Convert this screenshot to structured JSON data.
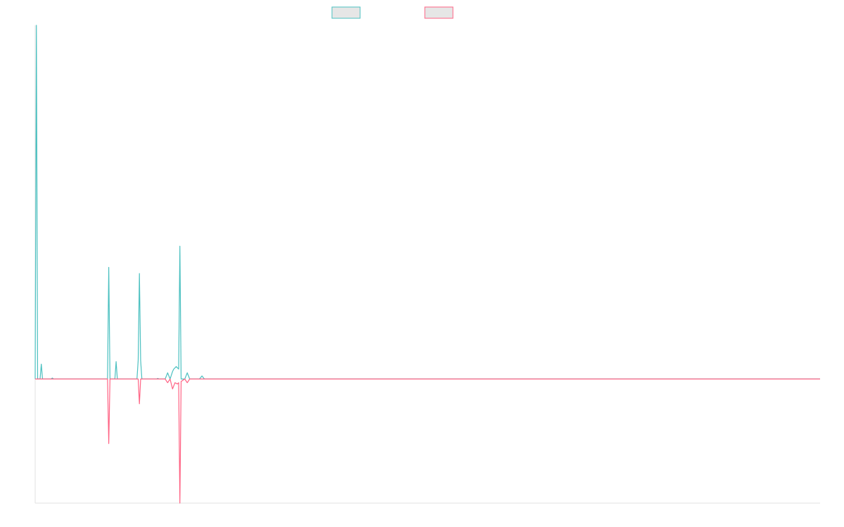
{
  "chart_data": {
    "type": "line",
    "title": "",
    "xlabel": "",
    "ylabel": "",
    "x_range": [
      0,
      320
    ],
    "ylim": [
      -1,
      2.85
    ],
    "grid": false,
    "legend_position": "top-center",
    "series": [
      {
        "color": "#4bc0c0",
        "fill": "#e6e6e6",
        "points": [
          [
            0,
            0
          ],
          [
            0.5,
            2.85
          ],
          [
            1,
            0
          ],
          [
            2,
            0
          ],
          [
            2.5,
            0.12
          ],
          [
            3,
            0
          ],
          [
            6.5,
            0
          ],
          [
            7,
            0.008
          ],
          [
            7.5,
            0
          ],
          [
            29.5,
            0
          ],
          [
            30,
            0.9
          ],
          [
            30.5,
            0
          ],
          [
            32.5,
            0
          ],
          [
            33,
            0.14
          ],
          [
            33.5,
            0
          ],
          [
            41.5,
            0
          ],
          [
            42,
            0.15
          ],
          [
            42.5,
            0.85
          ],
          [
            43,
            0.15
          ],
          [
            43.5,
            0
          ],
          [
            49.5,
            0
          ],
          [
            50,
            0.005
          ],
          [
            50.5,
            0
          ],
          [
            53,
            0
          ],
          [
            54,
            0.05
          ],
          [
            55,
            0
          ],
          [
            56,
            0.06
          ],
          [
            56.5,
            0.08
          ],
          [
            57.5,
            0.1
          ],
          [
            58.5,
            0.08
          ],
          [
            59,
            1.07
          ],
          [
            59.5,
            0
          ],
          [
            61,
            0
          ],
          [
            62,
            0.05
          ],
          [
            63,
            0
          ],
          [
            67,
            0
          ],
          [
            68,
            0.025
          ],
          [
            69,
            0
          ],
          [
            320,
            0
          ]
        ]
      },
      {
        "color": "#ff6384",
        "fill": "#e6e6e6",
        "points": [
          [
            0,
            0
          ],
          [
            29.5,
            0
          ],
          [
            30,
            -0.52
          ],
          [
            30.5,
            0
          ],
          [
            42,
            0
          ],
          [
            42.5,
            -0.2
          ],
          [
            43,
            0
          ],
          [
            53,
            0
          ],
          [
            54,
            -0.03
          ],
          [
            55,
            0
          ],
          [
            56,
            -0.08
          ],
          [
            57,
            -0.03
          ],
          [
            58,
            -0.04
          ],
          [
            58.5,
            -0.03
          ],
          [
            59,
            -1
          ],
          [
            59.5,
            -0.02
          ],
          [
            61,
            0
          ],
          [
            62,
            -0.03
          ],
          [
            63,
            0
          ],
          [
            320,
            0
          ]
        ]
      }
    ]
  }
}
